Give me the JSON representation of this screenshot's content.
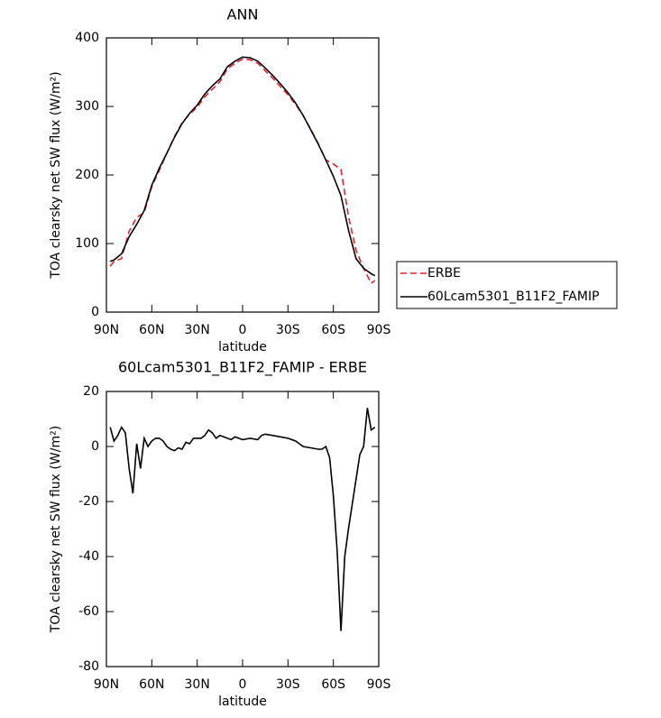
{
  "chart_data": [
    {
      "type": "line",
      "title": "ANN",
      "xlabel": "latitude",
      "ylabel": "TOA clearsky net SW flux (W/m²)",
      "x": [
        87.5,
        85,
        80,
        75,
        70,
        65,
        60,
        55,
        50,
        45,
        40,
        35,
        30,
        25,
        20,
        15,
        10,
        5,
        0,
        -5,
        -10,
        -15,
        -20,
        -25,
        -30,
        -35,
        -40,
        -45,
        -50,
        -55,
        -60,
        -65,
        -70,
        -75,
        -80,
        -85,
        -87.5
      ],
      "series": [
        {
          "name": "ERBE",
          "color": "#e8202a",
          "linestyle": "dashed",
          "values": [
            67,
            74,
            78,
            118,
            138,
            145,
            183,
            207,
            232,
            256,
            276,
            289,
            299,
            314,
            325,
            336,
            355,
            363,
            369,
            368,
            363,
            352,
            341,
            329,
            317,
            303,
            287,
            267,
            246,
            222,
            216,
            208,
            140,
            90,
            64,
            42,
            46
          ]
        },
        {
          "name": "60Lcam5301_B11F2_FAMIP",
          "color": "#000000",
          "linestyle": "solid",
          "values": [
            74,
            76,
            85,
            110,
            128,
            148,
            185,
            210,
            232,
            255,
            275,
            290,
            302,
            318,
            330,
            340,
            358,
            366,
            372,
            371,
            366,
            356,
            345,
            333,
            320,
            305,
            287,
            266,
            245,
            222,
            198,
            170,
            120,
            78,
            64,
            56,
            53
          ]
        }
      ],
      "xlim": [
        90,
        -90
      ],
      "xticks": [
        {
          "value": 90,
          "label": "90N"
        },
        {
          "value": 60,
          "label": "60N"
        },
        {
          "value": 30,
          "label": "30N"
        },
        0,
        {
          "value": -30,
          "label": "30S"
        },
        {
          "value": -60,
          "label": "60S"
        },
        {
          "value": -90,
          "label": "90S"
        }
      ],
      "ylim": [
        0,
        400
      ],
      "yticks": [
        0,
        100,
        200,
        300,
        400
      ],
      "legend": "right"
    },
    {
      "type": "line",
      "title": "60Lcam5301_B11F2_FAMIP - ERBE",
      "xlabel": "latitude",
      "ylabel": "TOA clearsky net SW flux (W/m²)",
      "x": [
        87.5,
        85,
        82.5,
        80,
        77.5,
        75,
        72.5,
        70,
        67.5,
        65,
        62.5,
        60,
        57.5,
        55,
        52.5,
        50,
        47.5,
        45,
        42.5,
        40,
        37.5,
        35,
        32.5,
        30,
        27.5,
        25,
        22.5,
        20,
        17.5,
        15,
        12.5,
        10,
        7.5,
        5,
        2.5,
        0,
        -5,
        -10,
        -12.5,
        -15,
        -20,
        -25,
        -30,
        -35,
        -40,
        -45,
        -50,
        -52.5,
        -55,
        -57.5,
        -60,
        -62.5,
        -65,
        -67.5,
        -70,
        -75,
        -77.5,
        -80,
        -82.5,
        -85,
        -87.5
      ],
      "series": [
        {
          "color": "#000000",
          "linestyle": "solid",
          "values": [
            7,
            2,
            4,
            7,
            5,
            -8,
            -17,
            1,
            -8,
            3,
            0,
            2,
            3,
            3,
            2,
            0,
            -1,
            -1.5,
            -0.5,
            -1,
            1.5,
            1,
            3,
            3,
            3,
            4,
            6,
            5,
            3,
            4,
            3.5,
            3,
            2.5,
            3.5,
            3,
            2.5,
            3,
            2.5,
            4,
            4.5,
            4,
            3.5,
            3,
            2,
            0,
            -0.5,
            -1,
            -1,
            0,
            -4,
            -18,
            -38,
            -67,
            -40,
            -30,
            -12,
            -3,
            0,
            14,
            6,
            7
          ]
        }
      ],
      "xlim": [
        90,
        -90
      ],
      "xticks": [
        {
          "value": 90,
          "label": "90N"
        },
        {
          "value": 60,
          "label": "60N"
        },
        {
          "value": 30,
          "label": "30N"
        },
        0,
        {
          "value": -30,
          "label": "30S"
        },
        {
          "value": -60,
          "label": "60S"
        },
        {
          "value": -90,
          "label": "90S"
        }
      ],
      "ylim": [
        -80,
        20
      ],
      "yticks": [
        -80,
        -60,
        -40,
        -20,
        0,
        20
      ]
    }
  ]
}
